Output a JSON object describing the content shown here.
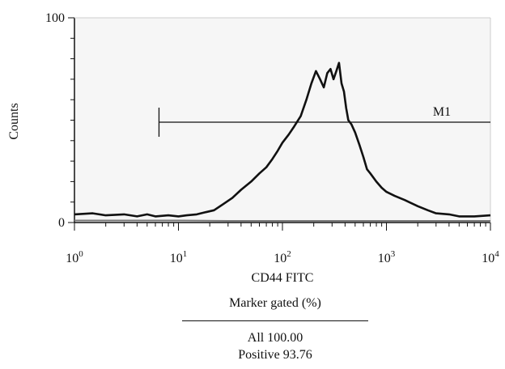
{
  "chart_data": {
    "type": "line",
    "xlabel": "CD44 FITC",
    "ylabel": "Counts",
    "x_scale": "log",
    "xlim": [
      1,
      10000
    ],
    "ylim": [
      0,
      100
    ],
    "x_ticks": [
      {
        "base": "10",
        "exp": "0",
        "value": 1
      },
      {
        "base": "10",
        "exp": "1",
        "value": 10
      },
      {
        "base": "10",
        "exp": "2",
        "value": 100
      },
      {
        "base": "10",
        "exp": "3",
        "value": 1000
      },
      {
        "base": "10",
        "exp": "4",
        "value": 10000
      }
    ],
    "y_ticks": [
      {
        "label": "0",
        "value": 0
      },
      {
        "label": "100",
        "value": 100
      }
    ],
    "grid": false,
    "series": [
      {
        "x": [
          1,
          1.5,
          2,
          3,
          4,
          5,
          6,
          8,
          10,
          12,
          15,
          18,
          22,
          27,
          33,
          40,
          50,
          60,
          70,
          80,
          90,
          100,
          115,
          130,
          150,
          170,
          190,
          210,
          230,
          250,
          270,
          290,
          310,
          330,
          350,
          370,
          390,
          410,
          430,
          460,
          500,
          550,
          600,
          650,
          700,
          800,
          900,
          1000,
          1200,
          1500,
          2000,
          2500,
          3000,
          4000,
          5000,
          7000,
          10000
        ],
        "y": [
          4,
          4.5,
          3.5,
          4,
          3,
          4,
          3,
          3.5,
          3,
          3.5,
          4,
          5,
          6,
          9,
          12,
          16,
          20,
          24,
          27,
          31,
          35,
          39,
          43,
          47,
          52,
          60,
          68,
          74,
          70,
          66,
          73,
          75,
          70,
          74,
          78,
          68,
          64,
          56,
          50,
          48,
          44,
          38,
          32,
          26,
          24,
          20,
          17,
          15,
          13,
          11,
          8,
          6,
          4.5,
          4,
          3,
          3,
          3.5
        ]
      },
      {
        "x": [
          1,
          10,
          30,
          100,
          300,
          1000,
          3000,
          10000
        ],
        "y": [
          1,
          1,
          0.8,
          0.8,
          0.8,
          0.8,
          0.8,
          0.8
        ]
      }
    ],
    "marker": {
      "label": "M1",
      "x_start": 6.5,
      "x_end": 10000,
      "y": 49
    }
  },
  "stats": {
    "title": "Marker gated (%)",
    "all": "All 100.00",
    "positive": "Positive 93.76"
  }
}
